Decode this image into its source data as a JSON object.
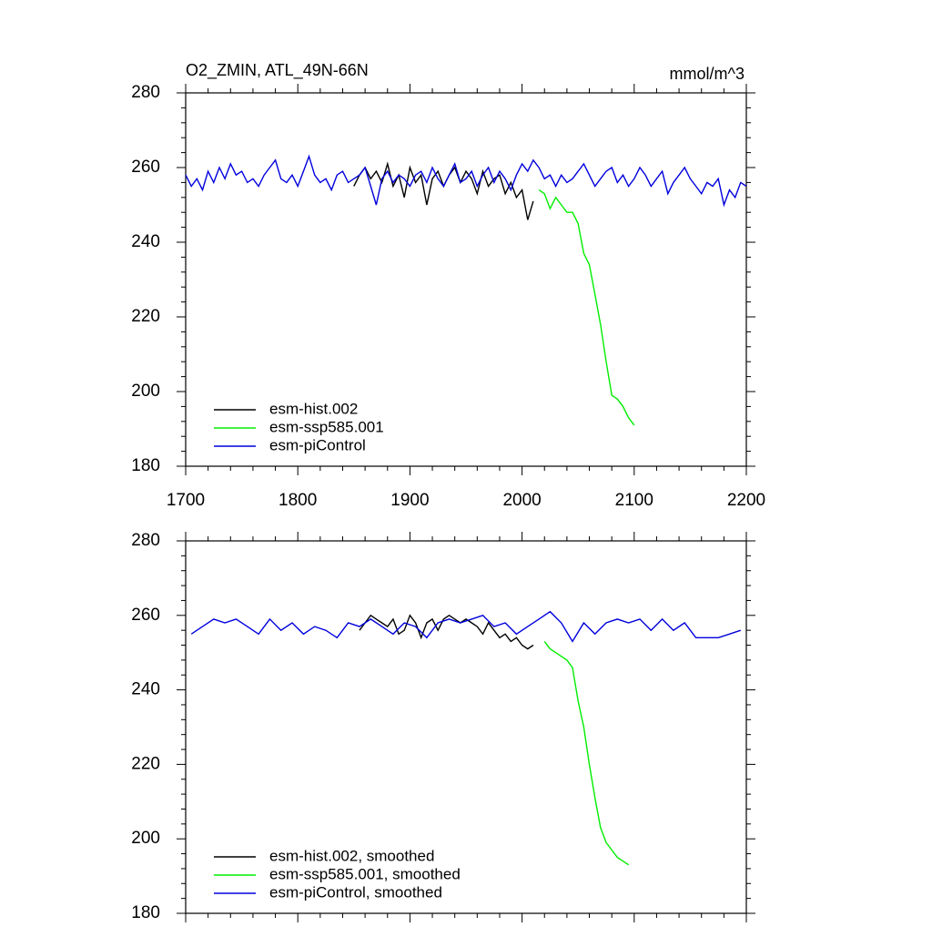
{
  "chart_data": [
    {
      "type": "line",
      "title": "O2_ZMIN, ATL_49N-66N",
      "units": "mmol/m^3",
      "xlim": [
        1700,
        2200
      ],
      "xticks": [
        1700,
        1800,
        1900,
        2000,
        2100,
        2200
      ],
      "xtick_labels": true,
      "ylim": [
        180,
        280
      ],
      "yticks": [
        180,
        200,
        220,
        240,
        260,
        280
      ],
      "legend": "lower left",
      "series": [
        {
          "name": "esm-hist.002",
          "color": "#000000",
          "x": [
            1850,
            1855,
            1860,
            1865,
            1870,
            1875,
            1880,
            1885,
            1890,
            1895,
            1900,
            1905,
            1910,
            1915,
            1920,
            1925,
            1930,
            1935,
            1940,
            1945,
            1950,
            1955,
            1960,
            1965,
            1970,
            1975,
            1980,
            1985,
            1990,
            1995,
            2000,
            2005,
            2010
          ],
          "values": [
            255,
            258,
            260,
            257,
            259,
            256,
            261,
            255,
            258,
            252,
            260,
            256,
            258,
            250,
            257,
            259,
            255,
            258,
            260,
            256,
            259,
            257,
            253,
            259,
            255,
            257,
            258,
            253,
            256,
            252,
            254,
            246,
            251
          ]
        },
        {
          "name": "esm-ssp585.001",
          "color": "#00ee00",
          "x": [
            2015,
            2020,
            2025,
            2030,
            2035,
            2040,
            2045,
            2050,
            2055,
            2060,
            2065,
            2070,
            2075,
            2080,
            2085,
            2090,
            2095,
            2100
          ],
          "values": [
            254,
            253,
            249,
            252,
            250,
            248,
            248,
            245,
            237,
            234,
            226,
            218,
            208,
            199,
            198,
            196,
            193,
            191
          ]
        },
        {
          "name": "esm-piControl",
          "color": "#0000dd",
          "x": [
            1700,
            1705,
            1710,
            1715,
            1720,
            1725,
            1730,
            1735,
            1740,
            1745,
            1750,
            1755,
            1760,
            1765,
            1770,
            1775,
            1780,
            1785,
            1790,
            1795,
            1800,
            1805,
            1810,
            1815,
            1820,
            1825,
            1830,
            1835,
            1840,
            1845,
            1850,
            1855,
            1860,
            1865,
            1870,
            1875,
            1880,
            1885,
            1890,
            1895,
            1900,
            1905,
            1910,
            1915,
            1920,
            1925,
            1930,
            1935,
            1940,
            1945,
            1950,
            1955,
            1960,
            1965,
            1970,
            1975,
            1980,
            1985,
            1990,
            1995,
            2000,
            2005,
            2010,
            2015,
            2020,
            2025,
            2030,
            2035,
            2040,
            2045,
            2050,
            2055,
            2060,
            2065,
            2070,
            2075,
            2080,
            2085,
            2090,
            2095,
            2100,
            2105,
            2110,
            2115,
            2120,
            2125,
            2130,
            2135,
            2140,
            2145,
            2150,
            2155,
            2160,
            2165,
            2170,
            2175,
            2180,
            2185,
            2190,
            2195,
            2200
          ],
          "values": [
            258,
            255,
            257,
            254,
            259,
            256,
            260,
            257,
            261,
            258,
            259,
            256,
            257,
            255,
            258,
            260,
            262,
            257,
            256,
            258,
            255,
            259,
            263,
            258,
            256,
            257,
            254,
            258,
            259,
            256,
            257,
            258,
            260,
            255,
            250,
            257,
            259,
            256,
            258,
            257,
            255,
            258,
            259,
            256,
            260,
            257,
            255,
            258,
            261,
            256,
            257,
            259,
            255,
            258,
            260,
            256,
            259,
            257,
            254,
            258,
            261,
            259,
            262,
            260,
            257,
            258,
            255,
            258,
            256,
            257,
            259,
            261,
            258,
            255,
            257,
            259,
            260,
            256,
            258,
            255,
            257,
            260,
            258,
            255,
            257,
            259,
            253,
            256,
            258,
            260,
            257,
            255,
            253,
            256,
            255,
            257,
            250,
            254,
            252,
            256,
            255
          ]
        }
      ]
    },
    {
      "type": "line",
      "xlim": [
        1700,
        2200
      ],
      "xticks": [
        1700,
        1800,
        1900,
        2000,
        2100,
        2200
      ],
      "xtick_labels": false,
      "ylim": [
        180,
        280
      ],
      "yticks": [
        180,
        200,
        220,
        240,
        260,
        280
      ],
      "legend": "lower left",
      "series": [
        {
          "name": "esm-hist.002, smoothed",
          "color": "#000000",
          "x": [
            1855,
            1860,
            1865,
            1870,
            1875,
            1880,
            1885,
            1890,
            1895,
            1900,
            1905,
            1910,
            1915,
            1920,
            1925,
            1930,
            1935,
            1940,
            1945,
            1950,
            1955,
            1960,
            1965,
            1970,
            1975,
            1980,
            1985,
            1990,
            1995,
            2000,
            2005,
            2010
          ],
          "values": [
            256,
            258,
            260,
            259,
            258,
            257,
            259,
            255,
            256,
            260,
            258,
            254,
            258,
            259,
            256,
            259,
            260,
            259,
            258,
            259,
            258,
            257,
            255,
            258,
            256,
            254,
            255,
            253,
            254,
            252,
            251,
            252
          ]
        },
        {
          "name": "esm-ssp585.001, smoothed",
          "color": "#00ee00",
          "x": [
            2020,
            2025,
            2030,
            2035,
            2040,
            2045,
            2050,
            2055,
            2060,
            2065,
            2070,
            2075,
            2080,
            2085,
            2090,
            2095
          ],
          "values": [
            253,
            251,
            250,
            249,
            248,
            246,
            237,
            230,
            220,
            211,
            203,
            199,
            197,
            195,
            194,
            193
          ]
        },
        {
          "name": "esm-piControl, smoothed",
          "color": "#0000dd",
          "x": [
            1705,
            1715,
            1725,
            1735,
            1745,
            1755,
            1765,
            1775,
            1785,
            1795,
            1805,
            1815,
            1825,
            1835,
            1845,
            1855,
            1865,
            1875,
            1885,
            1895,
            1905,
            1915,
            1925,
            1935,
            1945,
            1955,
            1965,
            1975,
            1985,
            1995,
            2005,
            2015,
            2025,
            2035,
            2045,
            2055,
            2065,
            2075,
            2085,
            2095,
            2105,
            2115,
            2125,
            2135,
            2145,
            2155,
            2165,
            2175,
            2185,
            2195
          ],
          "values": [
            255,
            257,
            259,
            258,
            259,
            257,
            255,
            259,
            256,
            258,
            255,
            257,
            256,
            254,
            258,
            257,
            259,
            257,
            255,
            258,
            257,
            254,
            258,
            259,
            258,
            259,
            260,
            257,
            258,
            255,
            257,
            259,
            261,
            258,
            253,
            258,
            255,
            258,
            259,
            258,
            259,
            256,
            259,
            256,
            258,
            254,
            254,
            254,
            255,
            256
          ]
        }
      ]
    }
  ]
}
